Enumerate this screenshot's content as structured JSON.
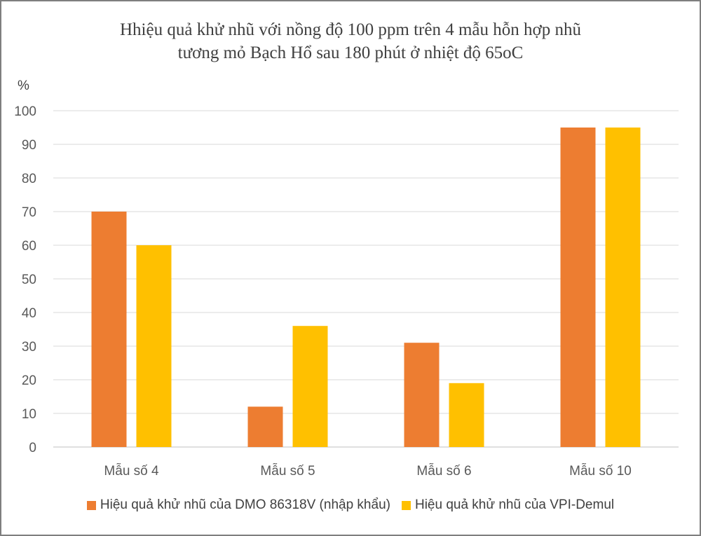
{
  "chart_data": {
    "type": "bar",
    "title_lines": [
      "Hhiệu quả khử nhũ với nồng độ 100 ppm trên 4 mẫu hỗn hợp nhũ",
      "tương mỏ Bạch Hổ sau 180 phút ở nhiệt độ 65oC"
    ],
    "ylabel": "%",
    "xlabel": "",
    "ylim": [
      0,
      100
    ],
    "yticks": [
      0,
      10,
      20,
      30,
      40,
      50,
      60,
      70,
      80,
      90,
      100
    ],
    "grid": true,
    "legend_position": "bottom",
    "categories": [
      "Mẫu số 4",
      "Mẫu số 5",
      "Mẫu số 6",
      "Mẫu số 10"
    ],
    "series": [
      {
        "name": "Hiệu quả khử nhũ của DMO 86318V (nhập khẩu)",
        "color": "#ED7D31",
        "values": [
          70,
          12,
          31,
          95
        ]
      },
      {
        "name": "Hiệu quả khử nhũ của VPI-Demul",
        "color": "#FFC000",
        "values": [
          60,
          36,
          19,
          95
        ]
      }
    ]
  }
}
